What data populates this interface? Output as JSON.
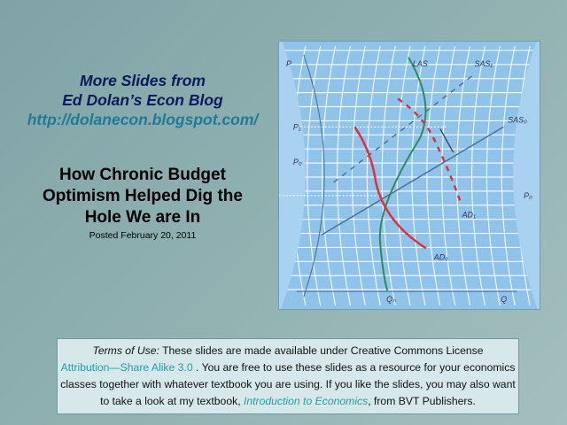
{
  "promo": {
    "line1": "More Slides from",
    "line2": "Ed Dolan’s Econ Blog",
    "link": "http://dolanecon.blogspot.com/"
  },
  "title": {
    "line1": "How Chronic Budget",
    "line2": "Optimism Helped Dig the",
    "line3": "Hole We are In",
    "posted": "Posted  February 20, 2011"
  },
  "figure": {
    "labels": {
      "p": "P",
      "las": "LAS",
      "sas1": "SAS₁",
      "sas0": "SAS₀",
      "p1": "P₁",
      "p0": "P₀",
      "ad1": "AD₁",
      "ad0": "AD₀",
      "qn": "Qₙ",
      "q": "Q",
      "p0_right": "P₀"
    },
    "colors": {
      "las": "#2e8b57",
      "ad": "#e0303a",
      "sas": "#4a6f9a",
      "grid": "#ffffff"
    }
  },
  "terms": {
    "label": "Terms of Use:",
    "text1": " These slides are made available under Creative Commons License",
    "license_link": "Attribution—Share Alike 3.0",
    "text2": " . You are free to use these slides as a resource for your economics classes together with whatever textbook you are using. If you like the slides, you may also want to take a look at my textbook, ",
    "book_link": "Introduction to Economics",
    "text3": ", from BVT Publishers."
  }
}
